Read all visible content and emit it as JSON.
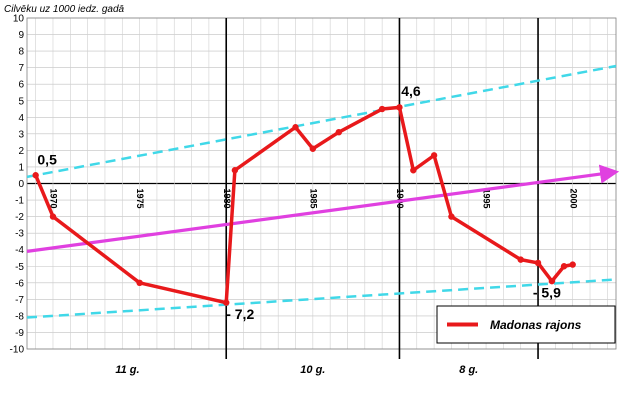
{
  "chart_data": {
    "type": "line",
    "title": "Cilvēku uz 1000 iedz. gadā",
    "ylim": [
      -10,
      10
    ],
    "xlim": [
      1968.5,
      2002.5
    ],
    "y_ticks": [
      10,
      9,
      8,
      7,
      6,
      5,
      4,
      3,
      2,
      1,
      0,
      -1,
      -2,
      -3,
      -4,
      -5,
      -6,
      -7,
      -8,
      -9,
      -10
    ],
    "x_tick_labels": [
      {
        "x": 1970,
        "label": "1970"
      },
      {
        "x": 1975,
        "label": "1975"
      },
      {
        "x": 1980,
        "label": "1980"
      },
      {
        "x": 1985,
        "label": "1985"
      },
      {
        "x": 1990,
        "label": "1990"
      },
      {
        "x": 1995,
        "label": "1995"
      },
      {
        "x": 2000,
        "label": "2000"
      }
    ],
    "grid": true,
    "period_dividers": [
      1980,
      1990,
      1998
    ],
    "period_labels": [
      {
        "x": 1974.3,
        "label": "11 g."
      },
      {
        "x": 1985,
        "label": "10 g."
      },
      {
        "x": 1994,
        "label": "8 g."
      }
    ],
    "series": [
      {
        "name": "Madonas rajons",
        "color": "#e8191b",
        "x": [
          1969,
          1970,
          1975,
          1980,
          1980.5,
          1984,
          1985,
          1986.5,
          1989,
          1990,
          1990.8,
          1992,
          1993,
          1997,
          1998,
          1998.8,
          1999.5,
          2000
        ],
        "y": [
          0.5,
          -2,
          -6,
          -7.2,
          0.8,
          3.4,
          2.1,
          3.1,
          4.5,
          4.6,
          0.8,
          1.7,
          -2,
          -4.6,
          -4.8,
          -5.9,
          -5,
          -4.9
        ]
      }
    ],
    "trend_lines": [
      {
        "kind": "arrow",
        "color": "#e040e0",
        "from": [
          1968.5,
          -4.1
        ],
        "to": [
          2002.5,
          0.7
        ]
      },
      {
        "kind": "dashed",
        "color": "#40d8e8",
        "from": [
          1968.5,
          0.4
        ],
        "to": [
          2002.5,
          7.1
        ]
      },
      {
        "kind": "dashed",
        "color": "#40d8e8",
        "from": [
          1968.5,
          -8.1
        ],
        "to": [
          2002.5,
          -5.8
        ]
      }
    ],
    "annotations": [
      {
        "text": "0,5",
        "x": 1969.1,
        "y": 1.15
      },
      {
        "text": "4,6",
        "x": 1990.1,
        "y": 5.3
      },
      {
        "text": "- 7,2",
        "x": 1980.0,
        "y": -8.2
      },
      {
        "text": "- 5,9",
        "x": 1997.7,
        "y": -6.9
      }
    ],
    "legend": {
      "position": "bottom-right",
      "label": "Madonas rajons"
    }
  }
}
